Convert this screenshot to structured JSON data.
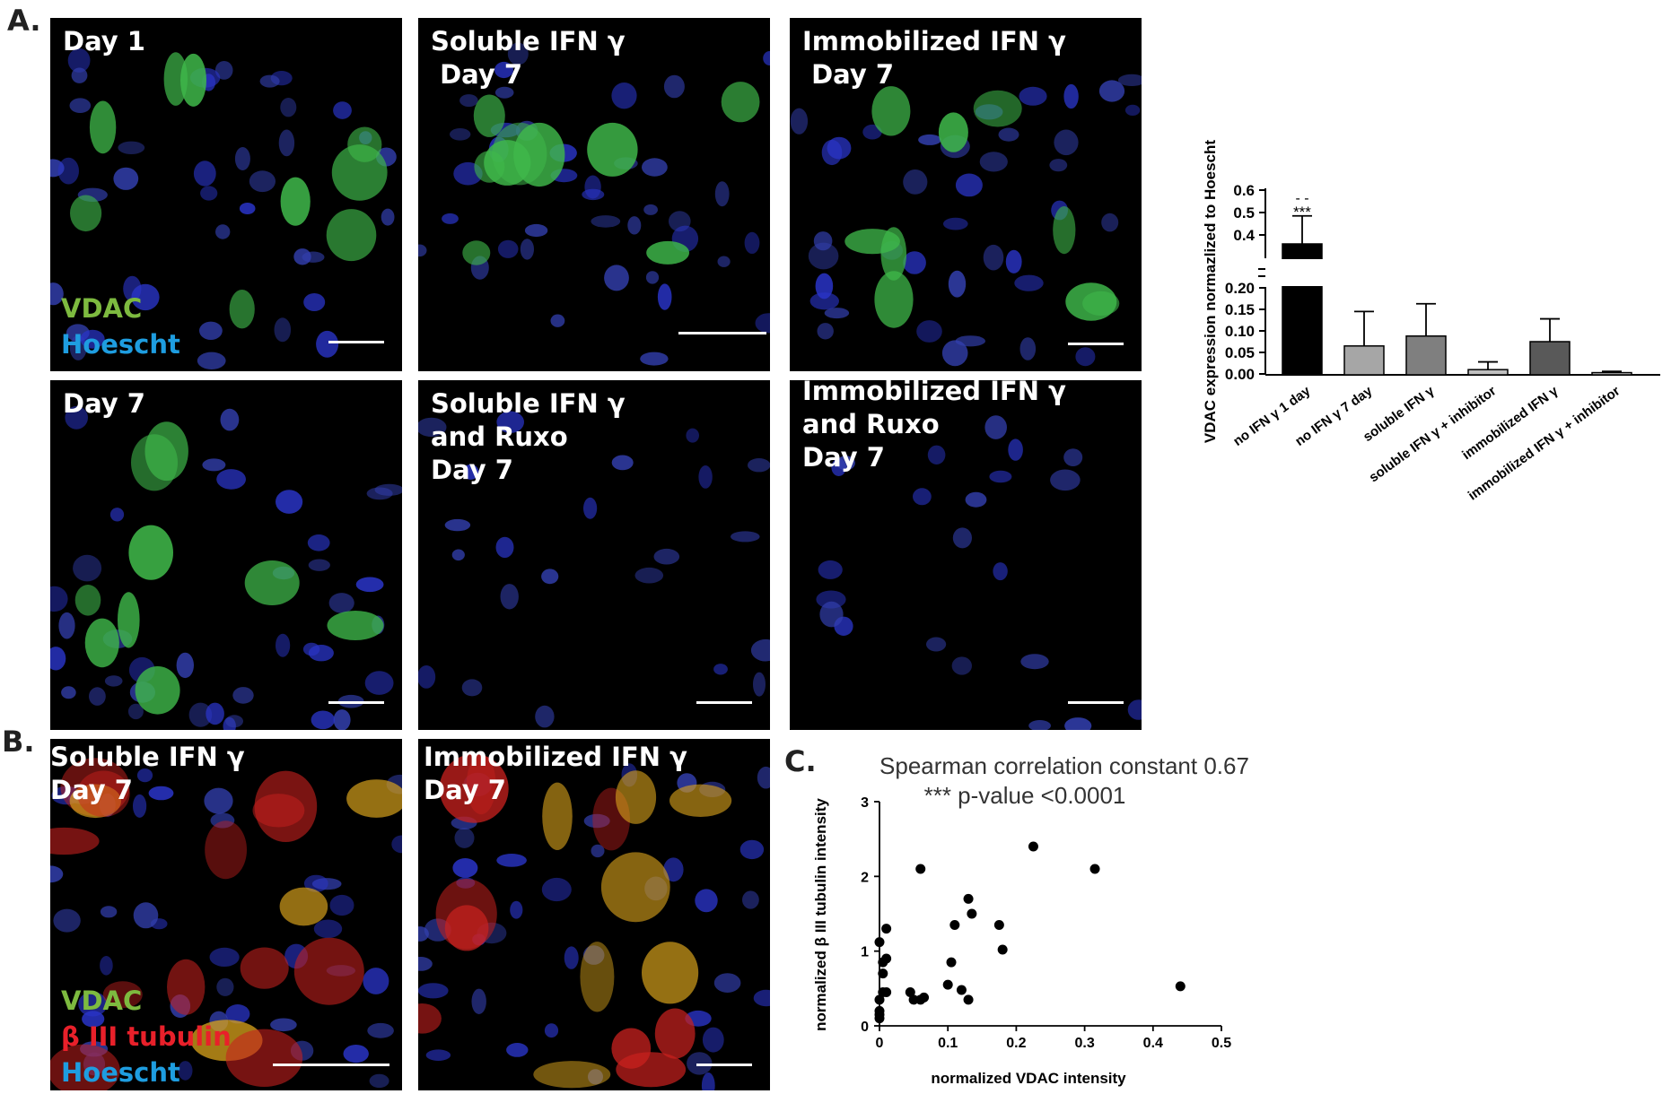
{
  "panel_labels": {
    "a": "A.",
    "b": "B.",
    "c": "C."
  },
  "micrographs": [
    {
      "id": "day1",
      "title": "Day 1",
      "legend": [
        "VDAC",
        "Hoescht"
      ],
      "stain": "green"
    },
    {
      "id": "soluble-day7",
      "title": "Soluble IFN γ\n Day 7",
      "stain": "green"
    },
    {
      "id": "immobilized-day7",
      "title": "Immobilized IFN γ\n Day 7",
      "stain": "green"
    },
    {
      "id": "day7",
      "title": "Day 7",
      "stain": "green"
    },
    {
      "id": "soluble-ruxo-day7",
      "title": "Soluble IFN γ\nand Ruxo\nDay 7",
      "stain": "blue"
    },
    {
      "id": "immobilized-ruxo-day7",
      "title": "Immobilized IFN γ\nand Ruxo\nDay 7",
      "stain": "blue"
    },
    {
      "id": "b-soluble-day7",
      "title": "Soluble IFN γ\nDay 7",
      "legend": [
        "VDAC",
        "β III tubulin",
        "Hoescht"
      ],
      "stain": "red"
    },
    {
      "id": "b-immobilized-day7",
      "title": "Immobilized IFN γ\nDay 7",
      "stain": "red"
    }
  ],
  "legend_colors": {
    "VDAC": "#7dba3f",
    "Hoescht": "#1e9de0",
    "β III tubulin": "#e8202a"
  },
  "chart_data": [
    {
      "type": "bar",
      "ylabel": "VDAC expression normazlized to Hoescht",
      "categories": [
        "no IFN γ 1 day",
        "no IFN γ 7 day",
        "soluble IFN γ",
        "soluble IFN γ + inhibitor",
        "immobilized IFN γ",
        "immobilized IFN γ + inhibitor"
      ],
      "values": [
        0.36,
        0.065,
        0.088,
        0.01,
        0.075,
        0.003
      ],
      "errors": [
        0.125,
        0.08,
        0.075,
        0.018,
        0.053,
        0.003
      ],
      "colors": [
        "#000000",
        "#a6a6a6",
        "#7f7f7f",
        "#bfbfbf",
        "#595959",
        "#d0d0d0"
      ],
      "significance": {
        "category": "no IFN γ 1 day",
        "marks": [
          "- -",
          "***"
        ]
      },
      "y_axis_break": {
        "lower_range": [
          0,
          0.2
        ],
        "upper_range": [
          0.3,
          0.6
        ]
      },
      "yticks_lower": [
        "0.00",
        "0.05",
        "0.10",
        "0.15",
        "0.20"
      ],
      "yticks_upper": [
        "0.4",
        "0.5",
        "0.6"
      ]
    },
    {
      "type": "scatter",
      "title": "Spearman correlation constant 0.67",
      "subtitle": "***  p-value <0.0001",
      "xlabel": "normalized VDAC intensity",
      "ylabel": "normalized β III tubulin intensity",
      "xlim": [
        0,
        0.5
      ],
      "ylim": [
        0,
        3
      ],
      "xticks": [
        "0",
        "0.1",
        "0.2",
        "0.3",
        "0.4",
        "0.5"
      ],
      "yticks": [
        "0",
        "1",
        "2",
        "3"
      ],
      "x": [
        0.0,
        0.0,
        0.0,
        0.0,
        0.0,
        0.005,
        0.005,
        0.005,
        0.01,
        0.01,
        0.01,
        0.045,
        0.05,
        0.06,
        0.065,
        0.06,
        0.1,
        0.105,
        0.11,
        0.12,
        0.13,
        0.13,
        0.135,
        0.175,
        0.18,
        0.225,
        0.315,
        0.44
      ],
      "y": [
        0.1,
        0.15,
        0.2,
        0.35,
        1.12,
        0.7,
        0.85,
        0.45,
        0.45,
        0.9,
        1.3,
        0.45,
        0.35,
        0.35,
        0.38,
        2.1,
        0.55,
        0.85,
        1.35,
        0.48,
        0.35,
        1.7,
        1.5,
        1.35,
        1.02,
        2.4,
        2.1,
        0.53
      ]
    }
  ]
}
